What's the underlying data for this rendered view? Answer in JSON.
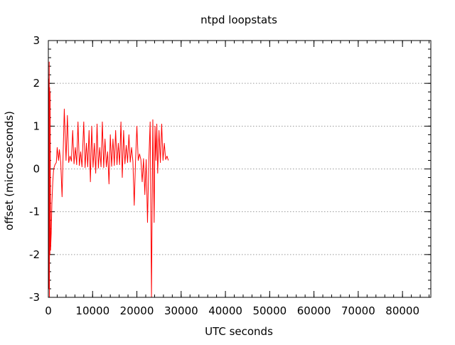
{
  "chart_data": {
    "type": "line",
    "title": "ntpd loopstats",
    "xlabel": "UTC seconds",
    "ylabel": "offset (micro-seconds)",
    "xlim": [
      0,
      86400
    ],
    "ylim": [
      -3,
      3
    ],
    "x_ticks": [
      0,
      10000,
      20000,
      30000,
      40000,
      50000,
      60000,
      70000,
      80000
    ],
    "y_ticks": [
      3,
      2,
      1,
      0,
      -1,
      -2,
      -3
    ],
    "grid": "horizontal dotted",
    "legend": "none",
    "series": [
      {
        "color": "#ff0000",
        "x": [
          0,
          100,
          150,
          200,
          250,
          300,
          350,
          400,
          500,
          650,
          800,
          1000,
          1200,
          1500,
          1800,
          2000,
          2300,
          2500,
          2800,
          3100,
          3300,
          3600,
          4000,
          4300,
          4600,
          4900,
          5200,
          5500,
          5800,
          6100,
          6400,
          6700,
          7000,
          7300,
          7600,
          8000,
          8300,
          8600,
          8900,
          9200,
          9500,
          9800,
          10100,
          10400,
          10700,
          11000,
          11300,
          11600,
          11900,
          12200,
          12500,
          12800,
          13100,
          13400,
          13700,
          14000,
          14300,
          14600,
          14900,
          15200,
          15500,
          15800,
          16100,
          16400,
          16700,
          17000,
          17300,
          17600,
          17900,
          18200,
          18500,
          18800,
          19100,
          19400,
          19700,
          20000,
          20300,
          20600,
          20900,
          21200,
          21500,
          21800,
          22100,
          22400,
          22700,
          23000,
          23300,
          23600,
          23900,
          24100,
          24300,
          24500,
          24700,
          25000,
          25300,
          25600,
          25900,
          26200,
          26500,
          26800,
          27100
        ],
        "y": [
          -3,
          2.1,
          -2.8,
          2.5,
          -3,
          1.9,
          -2.0,
          1.8,
          -1.9,
          -1.5,
          -0.8,
          -0.3,
          0.0,
          0.1,
          0.15,
          0.5,
          0.2,
          0.45,
          0.15,
          -0.65,
          0.18,
          1.4,
          0.2,
          1.25,
          0.15,
          0.3,
          0.18,
          0.9,
          0.12,
          0.5,
          0.1,
          1.1,
          0.08,
          0.4,
          0.05,
          1.1,
          0.03,
          0.6,
          0.05,
          0.9,
          -0.3,
          1.0,
          0.04,
          0.6,
          -0.1,
          1.05,
          0.02,
          0.5,
          0.05,
          1.1,
          0.03,
          0.7,
          0.05,
          0.4,
          -0.35,
          0.8,
          0.06,
          0.7,
          0.08,
          0.9,
          0.1,
          0.6,
          0.1,
          1.1,
          -0.2,
          0.9,
          0.12,
          0.55,
          0.15,
          0.8,
          0.16,
          0.5,
          0.18,
          -0.85,
          0.2,
          1.0,
          0.2,
          0.35,
          0.22,
          -0.3,
          0.24,
          -0.6,
          0.22,
          -1.25,
          0.2,
          1.1,
          -3,
          1.15,
          -1.25,
          1.0,
          0.2,
          1.05,
          -0.1,
          0.9,
          0.15,
          1.05,
          0.2,
          0.6,
          0.22,
          0.3,
          0.2
        ]
      }
    ]
  }
}
